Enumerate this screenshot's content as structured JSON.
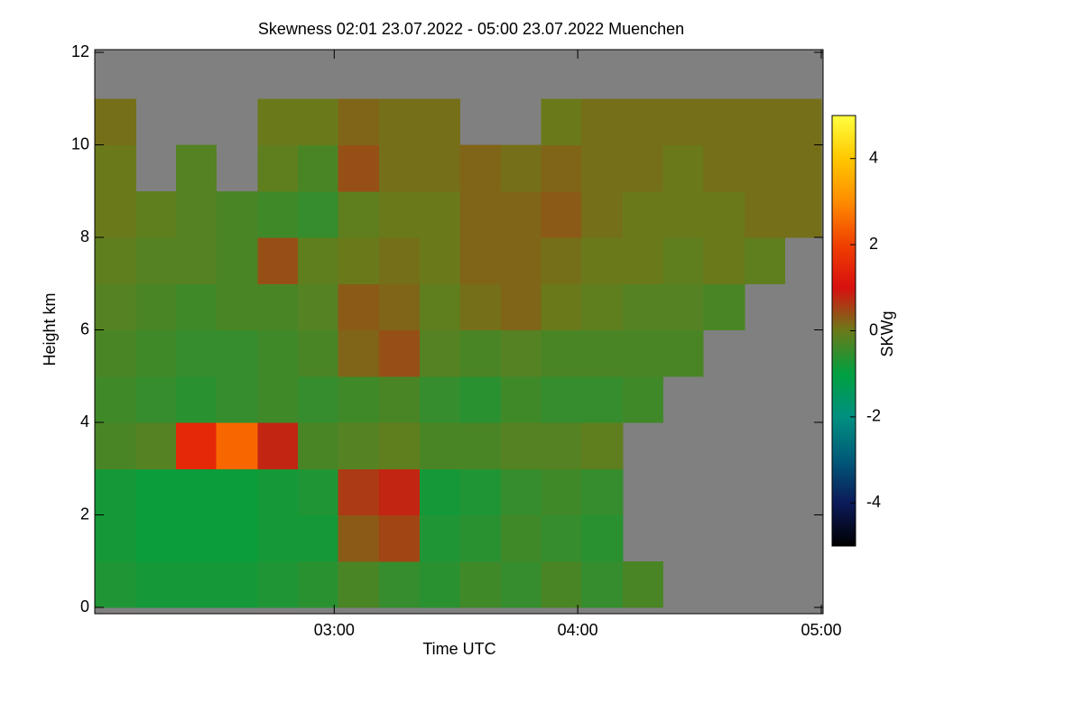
{
  "chart_data": {
    "type": "heatmap",
    "title": "Skewness   02:01 23.07.2022 - 05:00 23.07.2022 Muenchen",
    "x_label": "Time UTC",
    "y_label": "Height km",
    "colorbar_label": "SKWg",
    "x": [
      2.1,
      2.27,
      2.43,
      2.6,
      2.77,
      2.93,
      3.1,
      3.27,
      3.43,
      3.6,
      3.77,
      3.93,
      4.1,
      4.27,
      4.43,
      4.6,
      4.77,
      4.93
    ],
    "y": [
      0.5,
      1.5,
      2.5,
      3.5,
      4.5,
      5.5,
      6.5,
      7.5,
      8.5,
      9.5,
      10.5,
      11.5
    ],
    "values": [
      [
        -0.7,
        -0.8,
        -0.8,
        -0.8,
        -0.7,
        -0.6,
        -0.3,
        -0.5,
        -0.6,
        -0.4,
        -0.5,
        -0.3,
        -0.5,
        -0.3,
        null,
        null,
        null,
        null
      ],
      [
        -0.8,
        -0.9,
        -0.9,
        -0.9,
        -0.8,
        -0.8,
        0.3,
        0.5,
        -0.7,
        -0.6,
        -0.4,
        -0.5,
        -0.6,
        null,
        null,
        null,
        null,
        null
      ],
      [
        -0.8,
        -0.9,
        -0.9,
        -0.9,
        -0.8,
        -0.7,
        0.6,
        0.8,
        -0.8,
        -0.7,
        -0.5,
        -0.4,
        -0.5,
        null,
        null,
        null,
        null,
        null
      ],
      [
        -0.3,
        -0.2,
        1.5,
        2.5,
        0.8,
        -0.3,
        -0.2,
        -0.1,
        -0.3,
        -0.3,
        -0.2,
        -0.2,
        -0.1,
        null,
        null,
        null,
        null,
        null
      ],
      [
        -0.4,
        -0.5,
        -0.6,
        -0.5,
        -0.4,
        -0.5,
        -0.4,
        -0.3,
        -0.5,
        -0.6,
        -0.4,
        -0.5,
        -0.5,
        -0.4,
        null,
        null,
        null,
        null
      ],
      [
        -0.3,
        -0.4,
        -0.5,
        -0.5,
        -0.4,
        -0.3,
        0.2,
        0.4,
        -0.2,
        -0.3,
        -0.2,
        -0.3,
        -0.3,
        -0.3,
        -0.3,
        null,
        null,
        null
      ],
      [
        -0.2,
        -0.3,
        -0.4,
        -0.3,
        -0.3,
        -0.2,
        0.3,
        0.2,
        -0.1,
        0.1,
        0.2,
        0,
        -0.1,
        -0.2,
        -0.2,
        -0.3,
        null,
        null
      ],
      [
        -0.1,
        -0.2,
        -0.2,
        -0.3,
        0.4,
        -0.1,
        0,
        0.1,
        0,
        0.2,
        0.2,
        0.1,
        0,
        0,
        -0.1,
        0,
        -0.1,
        null
      ],
      [
        0,
        -0.1,
        -0.2,
        -0.3,
        -0.4,
        -0.5,
        -0.1,
        0,
        0,
        0.2,
        0.2,
        0.3,
        0.1,
        0,
        0,
        0,
        0.1,
        0.1
      ],
      [
        0,
        null,
        -0.2,
        null,
        -0.1,
        -0.3,
        0.4,
        0.1,
        0.1,
        0.2,
        0.1,
        0.2,
        0.1,
        0.1,
        0,
        0.1,
        0.1,
        0.1
      ],
      [
        0.1,
        null,
        null,
        null,
        0,
        0,
        0.2,
        0.1,
        0.1,
        null,
        null,
        0,
        0.1,
        0.1,
        0.1,
        0.1,
        0.1,
        0.1
      ],
      [
        null,
        null,
        null,
        null,
        null,
        null,
        null,
        null,
        null,
        null,
        null,
        null,
        null,
        null,
        null,
        null,
        null,
        null
      ]
    ],
    "xlim": [
      2.0167,
      5.0
    ],
    "xticks": [
      {
        "value": 3,
        "label": "03:00"
      },
      {
        "value": 4,
        "label": "04:00"
      },
      {
        "value": 5,
        "label": "05:00"
      }
    ],
    "ylim": [
      0,
      12
    ],
    "yticks": [
      0,
      2,
      4,
      6,
      8,
      10,
      12
    ],
    "zlim": [
      -5,
      5
    ],
    "zticks": [
      -4,
      -2,
      0,
      2,
      4
    ],
    "colorscale": [
      "#000000",
      "#0c1a5a",
      "#005a78",
      "#009080",
      "#00a040",
      "#6a7a1a",
      "#d81010",
      "#f04000",
      "#ff8c00",
      "#ffc800",
      "#ffff40"
    ],
    "missing_color": "#808080"
  }
}
